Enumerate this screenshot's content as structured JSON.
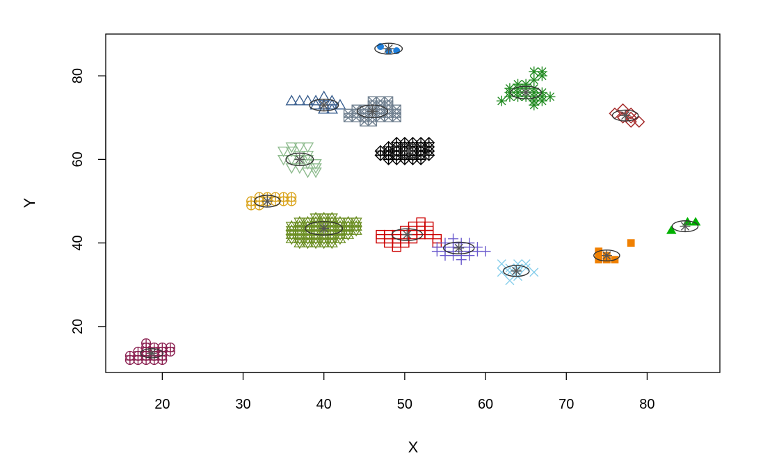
{
  "chart_data": {
    "type": "scatter",
    "xlabel": "X",
    "ylabel": "Y",
    "xlim": [
      13,
      89
    ],
    "ylim": [
      9,
      90
    ],
    "x_ticks": [
      20,
      30,
      40,
      50,
      60,
      70,
      80
    ],
    "y_ticks": [
      20,
      40,
      60,
      80
    ],
    "x_tick_labels": [
      "20",
      "30",
      "40",
      "50",
      "60",
      "70",
      "80"
    ],
    "y_tick_labels": [
      "20",
      "40",
      "60",
      "80"
    ],
    "grid": false,
    "legend": "none",
    "center_marker": {
      "symbol": "asterisk",
      "color": "#555555"
    },
    "clusters": [
      {
        "symbol": "circle-plus",
        "color": "#8B2252",
        "center": [
          18.7,
          13.6
        ],
        "ellipse_r": [
          1.4,
          1.1
        ],
        "points": [
          [
            16,
            12
          ],
          [
            16,
            13
          ],
          [
            17,
            12
          ],
          [
            17,
            13
          ],
          [
            17,
            14
          ],
          [
            18,
            12
          ],
          [
            18,
            13
          ],
          [
            18,
            14
          ],
          [
            18,
            15
          ],
          [
            18,
            16
          ],
          [
            19,
            12
          ],
          [
            19,
            13
          ],
          [
            19,
            14
          ],
          [
            19,
            15
          ],
          [
            20,
            12
          ],
          [
            20,
            13
          ],
          [
            20,
            14
          ],
          [
            20,
            15
          ],
          [
            21,
            14
          ],
          [
            21,
            15
          ]
        ]
      },
      {
        "symbol": "circle-plus",
        "color": "#DAA520",
        "center": [
          33,
          50
        ],
        "ellipse_r": [
          1.6,
          1.4
        ],
        "points": [
          [
            31,
            49
          ],
          [
            31,
            50
          ],
          [
            32,
            49
          ],
          [
            32,
            50
          ],
          [
            32,
            51
          ],
          [
            33,
            50
          ],
          [
            33,
            51
          ],
          [
            34,
            50
          ],
          [
            34,
            51
          ],
          [
            35,
            50
          ],
          [
            35,
            51
          ],
          [
            36,
            50
          ],
          [
            36,
            51
          ]
        ]
      },
      {
        "symbol": "triangle-down-open",
        "color": "#8FBC8F",
        "center": [
          37,
          60
        ],
        "ellipse_r": [
          1.7,
          1.5
        ],
        "points": [
          [
            35,
            62
          ],
          [
            35,
            60
          ],
          [
            36,
            62
          ],
          [
            36,
            60
          ],
          [
            36,
            58
          ],
          [
            37,
            61
          ],
          [
            37,
            60
          ],
          [
            37,
            58
          ],
          [
            38,
            61
          ],
          [
            38,
            60
          ],
          [
            38,
            59
          ],
          [
            38,
            57
          ],
          [
            39,
            59
          ],
          [
            39,
            58
          ],
          [
            39,
            57
          ],
          [
            37,
            63
          ],
          [
            36,
            63
          ],
          [
            38,
            63
          ]
        ]
      },
      {
        "symbol": "triangle-up-open",
        "color": "#3A5F8F",
        "center": [
          40,
          73
        ],
        "ellipse_r": [
          1.8,
          1.4
        ],
        "points": [
          [
            36,
            74
          ],
          [
            37,
            74
          ],
          [
            38,
            74
          ],
          [
            39,
            74
          ],
          [
            39,
            73
          ],
          [
            40,
            75
          ],
          [
            40,
            73
          ],
          [
            40,
            72
          ],
          [
            41,
            74
          ],
          [
            41,
            73
          ],
          [
            41,
            72
          ],
          [
            42,
            73
          ]
        ]
      },
      {
        "symbol": "triangle-both-open",
        "color": "#6B8E23",
        "center": [
          40,
          43.5
        ],
        "ellipse_r": [
          2.3,
          1.6
        ],
        "points": [
          [
            36,
            44
          ],
          [
            36,
            43
          ],
          [
            36,
            42
          ],
          [
            36,
            41
          ],
          [
            37,
            45
          ],
          [
            37,
            44
          ],
          [
            37,
            43
          ],
          [
            37,
            42
          ],
          [
            37,
            41
          ],
          [
            37,
            40
          ],
          [
            38,
            45
          ],
          [
            38,
            44
          ],
          [
            38,
            43
          ],
          [
            38,
            42
          ],
          [
            38,
            41
          ],
          [
            38,
            40
          ],
          [
            39,
            46
          ],
          [
            39,
            45
          ],
          [
            39,
            44
          ],
          [
            39,
            43
          ],
          [
            39,
            42
          ],
          [
            39,
            41
          ],
          [
            39,
            40
          ],
          [
            40,
            46
          ],
          [
            40,
            45
          ],
          [
            40,
            44
          ],
          [
            40,
            43
          ],
          [
            40,
            42
          ],
          [
            40,
            41
          ],
          [
            40,
            40
          ],
          [
            41,
            46
          ],
          [
            41,
            45
          ],
          [
            41,
            44
          ],
          [
            41,
            43
          ],
          [
            41,
            42
          ],
          [
            41,
            41
          ],
          [
            41,
            40
          ],
          [
            42,
            45
          ],
          [
            42,
            44
          ],
          [
            42,
            43
          ],
          [
            42,
            42
          ],
          [
            42,
            41
          ],
          [
            43,
            45
          ],
          [
            43,
            44
          ],
          [
            43,
            43
          ],
          [
            43,
            42
          ],
          [
            44,
            45
          ],
          [
            44,
            44
          ],
          [
            44,
            43
          ]
        ]
      },
      {
        "symbol": "square-cross-open",
        "color": "#708090",
        "center": [
          46,
          71.5
        ],
        "ellipse_r": [
          1.9,
          1.5
        ],
        "points": [
          [
            43,
            71
          ],
          [
            43,
            70
          ],
          [
            44,
            72
          ],
          [
            44,
            71
          ],
          [
            44,
            70
          ],
          [
            45,
            72
          ],
          [
            45,
            71
          ],
          [
            45,
            70
          ],
          [
            45,
            69
          ],
          [
            46,
            73
          ],
          [
            46,
            72
          ],
          [
            46,
            71
          ],
          [
            46,
            70
          ],
          [
            46,
            69
          ],
          [
            47,
            74
          ],
          [
            47,
            73
          ],
          [
            47,
            72
          ],
          [
            47,
            71
          ],
          [
            47,
            70
          ],
          [
            48,
            73
          ],
          [
            48,
            72
          ],
          [
            48,
            71
          ],
          [
            48,
            70
          ],
          [
            49,
            72
          ],
          [
            49,
            71
          ],
          [
            49,
            70
          ],
          [
            46,
            74
          ],
          [
            48,
            74
          ]
        ]
      },
      {
        "symbol": "diamond-plus-open",
        "color": "#000000",
        "center": [
          50.5,
          62
        ],
        "ellipse_r": [
          2.4,
          1.6
        ],
        "points": [
          [
            47,
            61
          ],
          [
            47,
            62
          ],
          [
            48,
            60
          ],
          [
            48,
            61
          ],
          [
            48,
            62
          ],
          [
            48,
            63
          ],
          [
            49,
            60
          ],
          [
            49,
            61
          ],
          [
            49,
            62
          ],
          [
            49,
            63
          ],
          [
            49,
            64
          ],
          [
            50,
            60
          ],
          [
            50,
            61
          ],
          [
            50,
            62
          ],
          [
            50,
            63
          ],
          [
            50,
            64
          ],
          [
            51,
            60
          ],
          [
            51,
            61
          ],
          [
            51,
            62
          ],
          [
            51,
            63
          ],
          [
            51,
            64
          ],
          [
            52,
            60
          ],
          [
            52,
            61
          ],
          [
            52,
            62
          ],
          [
            52,
            63
          ],
          [
            52,
            64
          ],
          [
            53,
            61
          ],
          [
            53,
            62
          ],
          [
            53,
            63
          ],
          [
            53,
            64
          ]
        ]
      },
      {
        "symbol": "filled-circle",
        "color": "#1E7FDC",
        "center": [
          48,
          86.5
        ],
        "ellipse_r": [
          1.7,
          1.3
        ],
        "points": [
          [
            47,
            87
          ],
          [
            48,
            86
          ],
          [
            49,
            86
          ]
        ]
      },
      {
        "symbol": "square-open",
        "color": "#CC0000",
        "center": [
          50.3,
          42
        ],
        "ellipse_r": [
          1.9,
          1.4
        ],
        "points": [
          [
            47,
            41
          ],
          [
            47,
            42
          ],
          [
            48,
            40
          ],
          [
            48,
            41
          ],
          [
            48,
            42
          ],
          [
            49,
            39
          ],
          [
            49,
            40
          ],
          [
            49,
            41
          ],
          [
            49,
            42
          ],
          [
            50,
            40
          ],
          [
            50,
            41
          ],
          [
            50,
            42
          ],
          [
            50,
            43
          ],
          [
            51,
            41
          ],
          [
            51,
            42
          ],
          [
            51,
            43
          ],
          [
            51,
            44
          ],
          [
            52,
            42
          ],
          [
            52,
            43
          ],
          [
            52,
            44
          ],
          [
            52,
            45
          ],
          [
            53,
            42
          ],
          [
            53,
            43
          ],
          [
            53,
            44
          ],
          [
            54,
            41
          ],
          [
            54,
            40
          ]
        ]
      },
      {
        "symbol": "plus",
        "color": "#6A5ACD",
        "center": [
          56.7,
          38.8
        ],
        "ellipse_r": [
          1.9,
          1.4
        ],
        "points": [
          [
            54,
            38
          ],
          [
            54,
            39
          ],
          [
            55,
            37
          ],
          [
            55,
            38
          ],
          [
            55,
            39
          ],
          [
            55,
            40
          ],
          [
            56,
            37
          ],
          [
            56,
            38
          ],
          [
            56,
            39
          ],
          [
            56,
            40
          ],
          [
            56,
            41
          ],
          [
            57,
            36
          ],
          [
            57,
            37
          ],
          [
            57,
            38
          ],
          [
            57,
            39
          ],
          [
            57,
            40
          ],
          [
            58,
            37
          ],
          [
            58,
            38
          ],
          [
            58,
            39
          ],
          [
            58,
            40
          ],
          [
            59,
            38
          ],
          [
            59,
            39
          ],
          [
            60,
            38
          ]
        ]
      },
      {
        "symbol": "cross",
        "color": "#87CEEB",
        "center": [
          63.8,
          33.3
        ],
        "ellipse_r": [
          1.6,
          1.3
        ],
        "points": [
          [
            62,
            35
          ],
          [
            62,
            33
          ],
          [
            63,
            34
          ],
          [
            63,
            33
          ],
          [
            63,
            31
          ],
          [
            64,
            35
          ],
          [
            64,
            34
          ],
          [
            64,
            33
          ],
          [
            64,
            32
          ],
          [
            65,
            34
          ],
          [
            65,
            35
          ],
          [
            66,
            33
          ]
        ]
      },
      {
        "symbol": "asterisk",
        "color": "#228B22",
        "center": [
          65,
          76
        ],
        "ellipse_r": [
          1.9,
          1.5
        ],
        "points": [
          [
            62,
            74
          ],
          [
            63,
            75
          ],
          [
            63,
            76
          ],
          [
            63,
            77
          ],
          [
            64,
            75
          ],
          [
            64,
            76
          ],
          [
            64,
            77
          ],
          [
            64,
            78
          ],
          [
            65,
            75
          ],
          [
            65,
            76
          ],
          [
            65,
            77
          ],
          [
            65,
            78
          ],
          [
            66,
            73
          ],
          [
            66,
            74
          ],
          [
            66,
            75
          ],
          [
            66,
            76
          ],
          [
            66,
            77
          ],
          [
            66,
            79
          ],
          [
            66,
            81
          ],
          [
            67,
            74
          ],
          [
            67,
            75
          ],
          [
            67,
            76
          ],
          [
            67,
            80
          ],
          [
            67,
            81
          ],
          [
            68,
            75
          ]
        ]
      },
      {
        "symbol": "diamond-open",
        "color": "#A52A2A",
        "center": [
          77.3,
          70.5
        ],
        "ellipse_r": [
          1.6,
          1.3
        ],
        "points": [
          [
            76,
            71
          ],
          [
            77,
            72
          ],
          [
            77,
            70
          ],
          [
            78,
            71
          ],
          [
            78,
            70
          ],
          [
            78,
            69
          ],
          [
            79,
            69
          ]
        ]
      },
      {
        "symbol": "filled-square",
        "color": "#F08000",
        "center": [
          75,
          37
        ],
        "ellipse_r": [
          1.6,
          1.3
        ],
        "points": [
          [
            74,
            38
          ],
          [
            74,
            37
          ],
          [
            74,
            36
          ],
          [
            75,
            37
          ],
          [
            75,
            36
          ],
          [
            76,
            36
          ],
          [
            78,
            40
          ]
        ]
      },
      {
        "symbol": "filled-triangle",
        "color": "#00B000",
        "center": [
          84.7,
          44
        ],
        "ellipse_r": [
          1.6,
          1.3
        ],
        "points": [
          [
            83,
            43
          ],
          [
            85,
            45
          ],
          [
            86,
            45
          ]
        ]
      }
    ]
  }
}
